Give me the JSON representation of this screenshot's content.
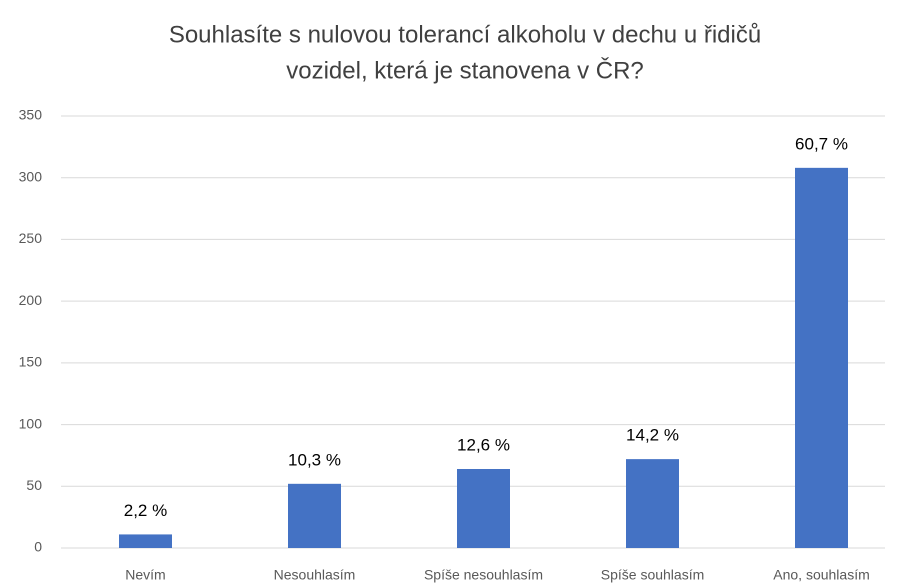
{
  "chart_data": {
    "type": "bar",
    "title": [
      "Souhlasíte s nulovou tolerancí alkoholu v dechu u řidičů",
      "vozidel, která je stanovena v ČR?"
    ],
    "categories": [
      "Nevím",
      "Nesouhlasím",
      "Spíše nesouhlasím",
      "Spíše souhlasím",
      "Ano, souhlasím"
    ],
    "values": [
      11,
      52,
      64,
      72,
      308
    ],
    "data_labels": [
      "2,2 %",
      "10,3 %",
      "12,6 %",
      "14,2 %",
      "60,7 %"
    ],
    "color": "#4472c4",
    "ylim": [
      0,
      350
    ],
    "yticks": [
      0,
      50,
      100,
      150,
      200,
      250,
      300,
      350
    ],
    "grid": true
  }
}
